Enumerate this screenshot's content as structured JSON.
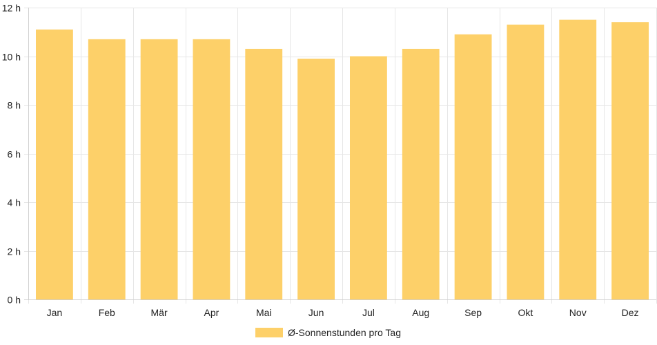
{
  "chart_data": {
    "type": "bar",
    "categories": [
      "Jan",
      "Feb",
      "Mär",
      "Apr",
      "Mai",
      "Jun",
      "Jul",
      "Aug",
      "Sep",
      "Okt",
      "Nov",
      "Dez"
    ],
    "series": [
      {
        "name": "Ø-Sonnenstunden pro Tag",
        "values": [
          11.1,
          10.7,
          10.7,
          10.7,
          10.3,
          9.9,
          10.0,
          10.3,
          10.9,
          11.3,
          11.5,
          11.4
        ]
      }
    ],
    "ylim": [
      0,
      12
    ],
    "yticks": [
      0,
      2,
      4,
      6,
      8,
      10,
      12
    ],
    "ytick_suffix": " h",
    "grid": true,
    "legend_position": "bottom",
    "colors": {
      "bar": "#fdd069",
      "grid": "#e6e6e6",
      "axis": "#cfcfcf",
      "text": "#222222"
    }
  }
}
